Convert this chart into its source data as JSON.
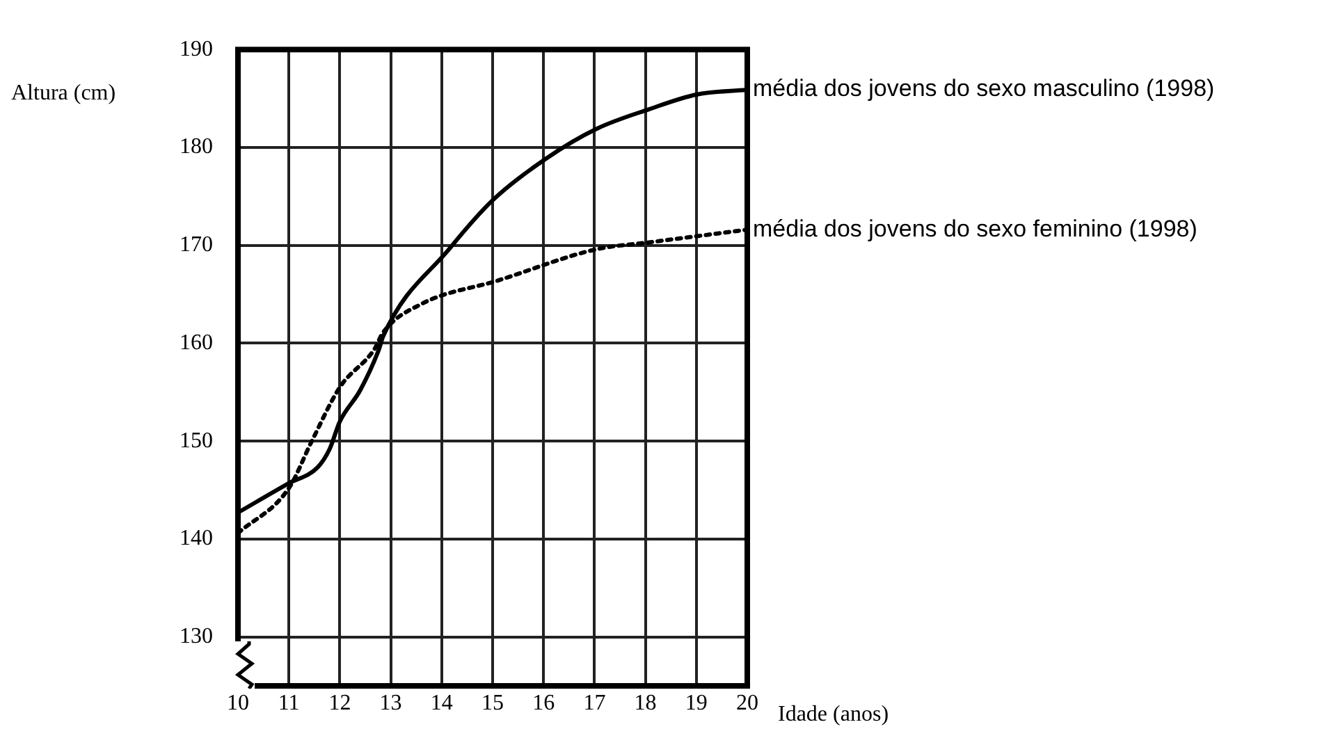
{
  "chart_data": {
    "type": "line",
    "xlabel": "Idade (anos)",
    "ylabel": "Altura (cm)",
    "xlim": [
      10,
      20
    ],
    "xticks": [
      10,
      11,
      12,
      13,
      14,
      15,
      16,
      17,
      18,
      19,
      20
    ],
    "ylim": [
      125,
      190
    ],
    "yticks": [
      130,
      140,
      150,
      160,
      170,
      180,
      190
    ],
    "grid": true,
    "legend": false,
    "marker": "none",
    "series": [
      {
        "name": "média dos jovens do sexo masculino (1998)",
        "color": "#000000",
        "line_style": "solid",
        "x": [
          10,
          11,
          11.56,
          11.8,
          12,
          12.4,
          12.77,
          12.85,
          14.16,
          15,
          16.06,
          17.04,
          18.07,
          19,
          20
        ],
        "values": [
          142.7,
          145.7,
          147.3,
          149.2,
          152,
          155.2,
          159.4,
          160.7,
          169.7,
          174.6,
          178.9,
          181.9,
          183.9,
          185.4,
          185.9
        ]
      },
      {
        "name": "média dos jovens do sexo feminino (1998)",
        "color": "#000000",
        "line_style": "dotted",
        "x": [
          10,
          11,
          11.45,
          12,
          12.68,
          12.85,
          13.6,
          15.1,
          17.04,
          18.07,
          20
        ],
        "values": [
          140.6,
          145.2,
          150,
          155.5,
          159.4,
          161.1,
          164,
          166.4,
          169.6,
          170.3,
          171.6
        ]
      }
    ]
  }
}
